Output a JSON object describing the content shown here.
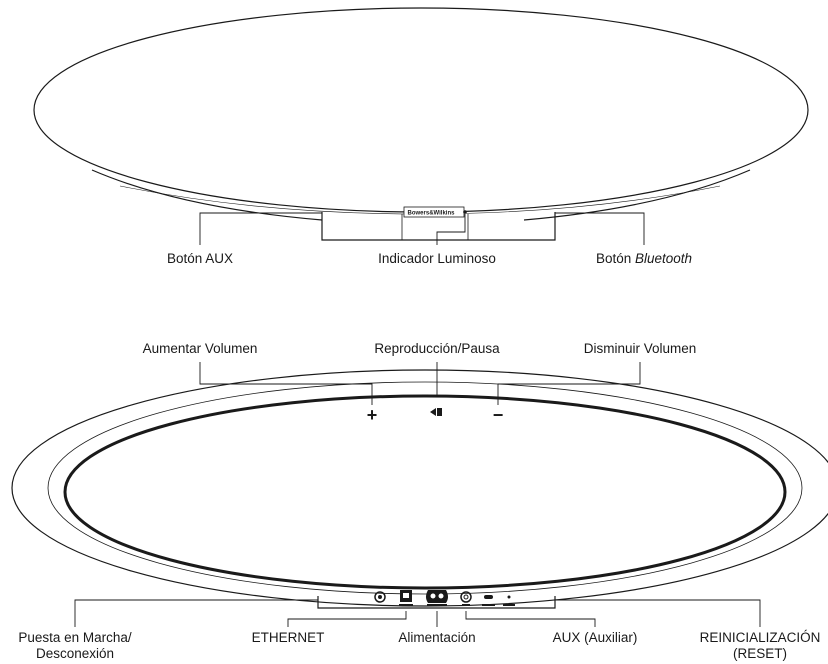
{
  "top_view": {
    "brand_text": "Bowers&Wilkins",
    "labels": {
      "aux_button": "Botón AUX",
      "light_indicator": "Indicador Luminoso",
      "bluetooth_button_prefix": "Botón ",
      "bluetooth_button_em": "Bluetooth"
    }
  },
  "bottom_view": {
    "labels": {
      "volume_up": "Aumentar Volumen",
      "play_pause": "Reproducción/Pausa",
      "volume_down": "Disminuir Volumen",
      "power_line1": "Puesta en Marcha/",
      "power_line2": "Desconexión",
      "ethernet": "ETHERNET",
      "power_supply": "Alimentación",
      "aux_input": "AUX (Auxiliar)",
      "reset_line1": "REINICIALIZACIÓN",
      "reset_line2": "(RESET)"
    },
    "button_symbols": {
      "plus": "+",
      "play": "◂▮",
      "minus": "−"
    }
  }
}
